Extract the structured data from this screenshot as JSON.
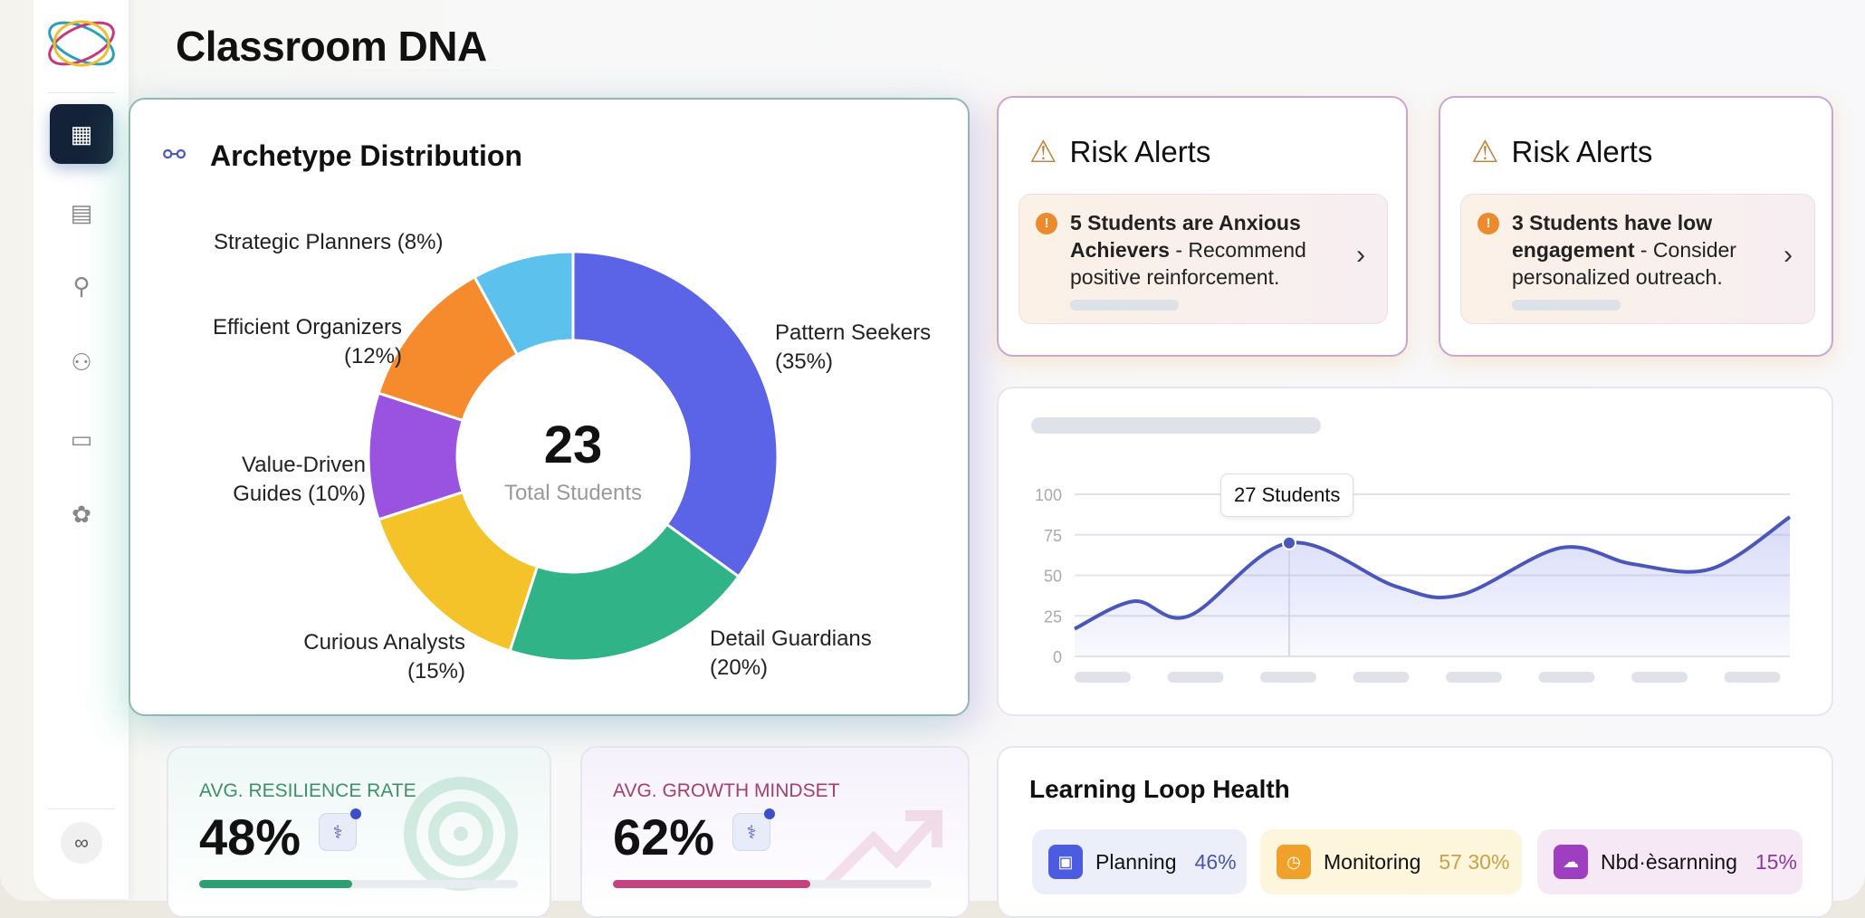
{
  "page_title": "Classroom DNA",
  "sidebar": {
    "items": [
      {
        "icon": "dashboard-grid-icon",
        "glyph": "▦",
        "active": true
      },
      {
        "icon": "calendar-icon",
        "glyph": "▤"
      },
      {
        "icon": "running-figure-icon",
        "glyph": "⚲"
      },
      {
        "icon": "group-icon",
        "glyph": "⚇"
      },
      {
        "icon": "briefcase-icon",
        "glyph": "▭"
      },
      {
        "icon": "flower-network-icon",
        "glyph": "✿"
      }
    ],
    "bottom_icon": "settings-link-icon",
    "bottom_glyph": "∞"
  },
  "archetype": {
    "title": "Archetype Distribution",
    "center_value": "23",
    "center_label": "Total Students"
  },
  "chart_data": [
    {
      "type": "pie",
      "title": "Archetype Distribution",
      "labels": [
        "Pattern Seekers",
        "Detail Guardians",
        "Curious Analysts",
        "Value-Driven Guides",
        "Efficient Organizers",
        "Strategic Planners"
      ],
      "values": [
        35,
        20,
        15,
        10,
        12,
        8
      ],
      "colors": [
        "#5b63e6",
        "#2fb387",
        "#f4c229",
        "#9a52e0",
        "#f58b2c",
        "#5cc1ec"
      ],
      "label_text": [
        [
          "Pattern Seekers",
          "(35%)"
        ],
        [
          "Detail Guardians",
          "(20%)"
        ],
        [
          "Curious Analysts",
          "(15%)"
        ],
        [
          "Value-Driven",
          "Guides (10%)"
        ],
        [
          "Efficient Organizers",
          "(12%)"
        ],
        [
          "Strategic Planners (8%)"
        ]
      ]
    },
    {
      "type": "line",
      "x": [
        0,
        8.3,
        16,
        30,
        45,
        54,
        68,
        78,
        89,
        100
      ],
      "y": [
        17,
        34,
        25,
        70,
        43,
        38,
        67,
        57,
        54,
        86
      ],
      "ylim": [
        0,
        100
      ],
      "yticks": [
        "0",
        "25",
        "50",
        "75",
        "100"
      ],
      "highlight_index": 3,
      "tooltip": "27 Students",
      "color": "#4a56b8",
      "xtick_placeholders": 8
    }
  ],
  "risk_alerts": [
    {
      "title": "Risk Alerts",
      "bold": "5 Students are Anxious Achievers",
      "rest": " - Recommend positive reinforcement."
    },
    {
      "title": "Risk Alerts",
      "bold": "3 Students have low engagement",
      "rest": " - Consider personalized outreach."
    }
  ],
  "kpis": [
    {
      "label": "AVG. RESILIENCE RATE",
      "value": "48%",
      "progress": 48,
      "color": "#2e9f70",
      "label_color": "#3f8f6a"
    },
    {
      "label": "AVG. GROWTH MINDSET",
      "value": "62%",
      "progress": 62,
      "color": "#c4427f",
      "label_color": "#a2406f"
    }
  ],
  "learning_loop": {
    "title": "Learning Loop Health",
    "chips": [
      {
        "label": "Planning",
        "value": "46%",
        "icon": "calendar-icon",
        "glyph": "▣",
        "bg": "#eceefa",
        "icon_bg": "#4c5ce0",
        "value_color": "#4a56a8"
      },
      {
        "label": "Monitoring",
        "value": "57 30%",
        "icon": "clock-icon",
        "glyph": "◷",
        "bg": "#fdf6dc",
        "icon_bg": "#f0a12a",
        "value_color": "#c8a24a"
      },
      {
        "label": "Nbd·èsarnning",
        "value": "15%",
        "icon": "cloud-upload-icon",
        "glyph": "☁",
        "bg": "#f7e8f5",
        "icon_bg": "#9d3fc0",
        "value_color": "#8a3a9a"
      }
    ]
  }
}
